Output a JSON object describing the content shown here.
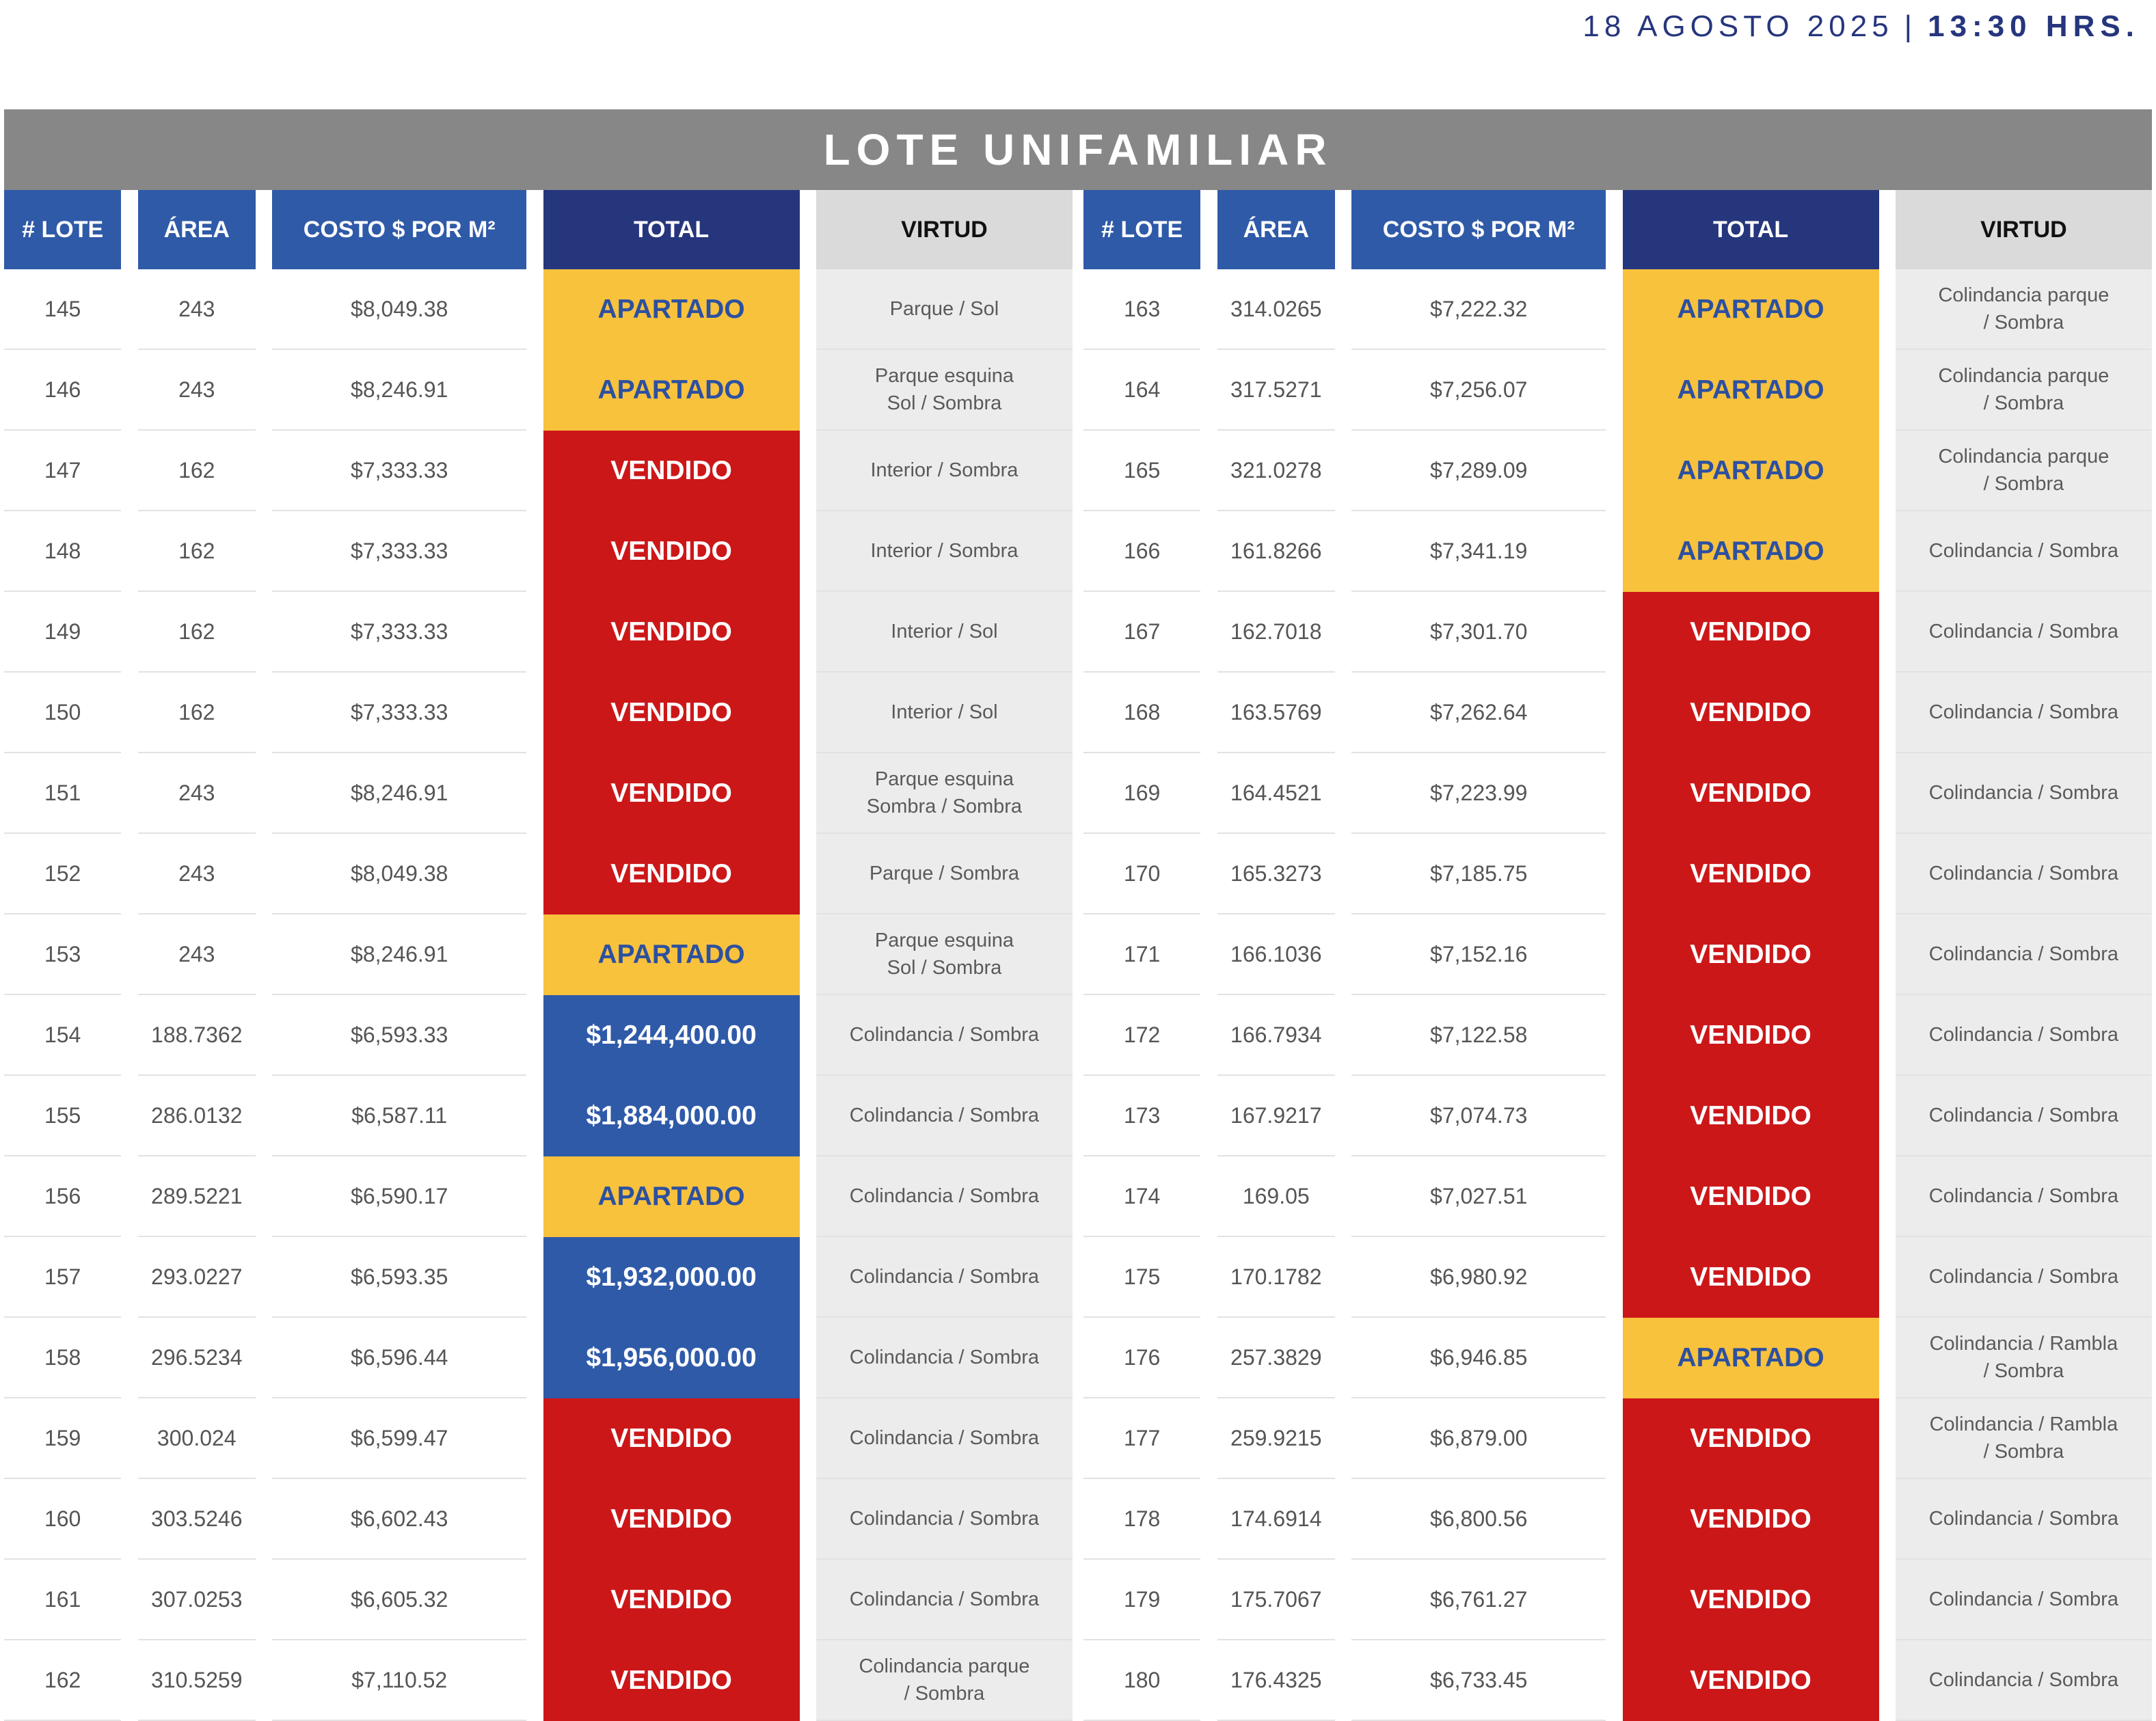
{
  "header": {
    "date": "18 AGOSTO 2025",
    "separator": "|",
    "time": "13:30 HRS."
  },
  "title": "LOTE UNIFAMILIAR",
  "colors": {
    "apartado_bg": "#f8c23d",
    "apartado_text": "#2d50a0",
    "vendido_bg": "#cc1719",
    "precio_bg": "#2f5aa8",
    "header_blue": "#2f5aa8",
    "header_navy": "#26367d",
    "title_gray": "#878787"
  },
  "columns": {
    "lote": "# LOTE",
    "area": "ÁREA",
    "costo": "COSTO $ POR M²",
    "total": "TOTAL",
    "virtud": "VIRTUD"
  },
  "left_table": [
    {
      "lote": "145",
      "area": "243",
      "costo": "$8,049.38",
      "total": "APARTADO",
      "status": "apartado",
      "virtud": "Parque / Sol"
    },
    {
      "lote": "146",
      "area": "243",
      "costo": "$8,246.91",
      "total": "APARTADO",
      "status": "apartado",
      "virtud": "Parque esquina\nSol / Sombra"
    },
    {
      "lote": "147",
      "area": "162",
      "costo": "$7,333.33",
      "total": "VENDIDO",
      "status": "vendido",
      "virtud": "Interior / Sombra"
    },
    {
      "lote": "148",
      "area": "162",
      "costo": "$7,333.33",
      "total": "VENDIDO",
      "status": "vendido",
      "virtud": "Interior / Sombra"
    },
    {
      "lote": "149",
      "area": "162",
      "costo": "$7,333.33",
      "total": "VENDIDO",
      "status": "vendido",
      "virtud": "Interior / Sol"
    },
    {
      "lote": "150",
      "area": "162",
      "costo": "$7,333.33",
      "total": "VENDIDO",
      "status": "vendido",
      "virtud": "Interior / Sol"
    },
    {
      "lote": "151",
      "area": "243",
      "costo": "$8,246.91",
      "total": "VENDIDO",
      "status": "vendido",
      "virtud": "Parque esquina\nSombra / Sombra"
    },
    {
      "lote": "152",
      "area": "243",
      "costo": "$8,049.38",
      "total": "VENDIDO",
      "status": "vendido",
      "virtud": "Parque / Sombra"
    },
    {
      "lote": "153",
      "area": "243",
      "costo": "$8,246.91",
      "total": "APARTADO",
      "status": "apartado",
      "virtud": "Parque esquina\nSol / Sombra"
    },
    {
      "lote": "154",
      "area": "188.7362",
      "costo": "$6,593.33",
      "total": "$1,244,400.00",
      "status": "precio",
      "virtud": "Colindancia / Sombra"
    },
    {
      "lote": "155",
      "area": "286.0132",
      "costo": "$6,587.11",
      "total": "$1,884,000.00",
      "status": "precio",
      "virtud": "Colindancia / Sombra"
    },
    {
      "lote": "156",
      "area": "289.5221",
      "costo": "$6,590.17",
      "total": "APARTADO",
      "status": "apartado",
      "virtud": "Colindancia / Sombra"
    },
    {
      "lote": "157",
      "area": "293.0227",
      "costo": "$6,593.35",
      "total": "$1,932,000.00",
      "status": "precio",
      "virtud": "Colindancia / Sombra"
    },
    {
      "lote": "158",
      "area": "296.5234",
      "costo": "$6,596.44",
      "total": "$1,956,000.00",
      "status": "precio",
      "virtud": "Colindancia / Sombra"
    },
    {
      "lote": "159",
      "area": "300.024",
      "costo": "$6,599.47",
      "total": "VENDIDO",
      "status": "vendido",
      "virtud": "Colindancia / Sombra"
    },
    {
      "lote": "160",
      "area": "303.5246",
      "costo": "$6,602.43",
      "total": "VENDIDO",
      "status": "vendido",
      "virtud": "Colindancia / Sombra"
    },
    {
      "lote": "161",
      "area": "307.0253",
      "costo": "$6,605.32",
      "total": "VENDIDO",
      "status": "vendido",
      "virtud": "Colindancia / Sombra"
    },
    {
      "lote": "162",
      "area": "310.5259",
      "costo": "$7,110.52",
      "total": "VENDIDO",
      "status": "vendido",
      "virtud": "Colindancia parque\n/ Sombra"
    }
  ],
  "right_table": [
    {
      "lote": "163",
      "area": "314.0265",
      "costo": "$7,222.32",
      "total": "APARTADO",
      "status": "apartado",
      "virtud": "Colindancia parque\n/ Sombra"
    },
    {
      "lote": "164",
      "area": "317.5271",
      "costo": "$7,256.07",
      "total": "APARTADO",
      "status": "apartado",
      "virtud": "Colindancia parque\n/ Sombra"
    },
    {
      "lote": "165",
      "area": "321.0278",
      "costo": "$7,289.09",
      "total": "APARTADO",
      "status": "apartado",
      "virtud": "Colindancia parque\n/ Sombra"
    },
    {
      "lote": "166",
      "area": "161.8266",
      "costo": "$7,341.19",
      "total": "APARTADO",
      "status": "apartado",
      "virtud": "Colindancia / Sombra"
    },
    {
      "lote": "167",
      "area": "162.7018",
      "costo": "$7,301.70",
      "total": "VENDIDO",
      "status": "vendido",
      "virtud": "Colindancia / Sombra"
    },
    {
      "lote": "168",
      "area": "163.5769",
      "costo": "$7,262.64",
      "total": "VENDIDO",
      "status": "vendido",
      "virtud": "Colindancia / Sombra"
    },
    {
      "lote": "169",
      "area": "164.4521",
      "costo": "$7,223.99",
      "total": "VENDIDO",
      "status": "vendido",
      "virtud": "Colindancia / Sombra"
    },
    {
      "lote": "170",
      "area": "165.3273",
      "costo": "$7,185.75",
      "total": "VENDIDO",
      "status": "vendido",
      "virtud": "Colindancia / Sombra"
    },
    {
      "lote": "171",
      "area": "166.1036",
      "costo": "$7,152.16",
      "total": "VENDIDO",
      "status": "vendido",
      "virtud": "Colindancia / Sombra"
    },
    {
      "lote": "172",
      "area": "166.7934",
      "costo": "$7,122.58",
      "total": "VENDIDO",
      "status": "vendido",
      "virtud": "Colindancia / Sombra"
    },
    {
      "lote": "173",
      "area": "167.9217",
      "costo": "$7,074.73",
      "total": "VENDIDO",
      "status": "vendido",
      "virtud": "Colindancia / Sombra"
    },
    {
      "lote": "174",
      "area": "169.05",
      "costo": "$7,027.51",
      "total": "VENDIDO",
      "status": "vendido",
      "virtud": "Colindancia / Sombra"
    },
    {
      "lote": "175",
      "area": "170.1782",
      "costo": "$6,980.92",
      "total": "VENDIDO",
      "status": "vendido",
      "virtud": "Colindancia / Sombra"
    },
    {
      "lote": "176",
      "area": "257.3829",
      "costo": "$6,946.85",
      "total": "APARTADO",
      "status": "apartado",
      "virtud": "Colindancia / Rambla\n/ Sombra"
    },
    {
      "lote": "177",
      "area": "259.9215",
      "costo": "$6,879.00",
      "total": "VENDIDO",
      "status": "vendido",
      "virtud": "Colindancia / Rambla\n/ Sombra"
    },
    {
      "lote": "178",
      "area": "174.6914",
      "costo": "$6,800.56",
      "total": "VENDIDO",
      "status": "vendido",
      "virtud": "Colindancia / Sombra"
    },
    {
      "lote": "179",
      "area": "175.7067",
      "costo": "$6,761.27",
      "total": "VENDIDO",
      "status": "vendido",
      "virtud": "Colindancia / Sombra"
    },
    {
      "lote": "180",
      "area": "176.4325",
      "costo": "$6,733.45",
      "total": "VENDIDO",
      "status": "vendido",
      "virtud": "Colindancia / Sombra"
    }
  ]
}
